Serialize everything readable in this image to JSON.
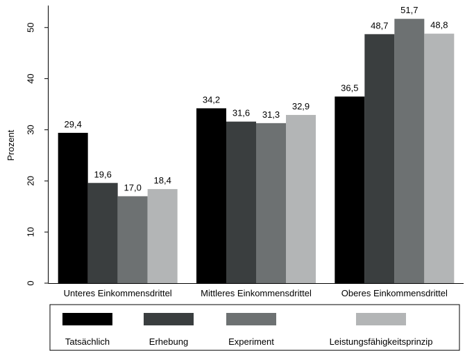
{
  "chart_data": {
    "type": "bar",
    "y_label": "Prozent",
    "categories": [
      "Unteres Einkommensdrittel",
      "Mittleres Einkommensdrittel",
      "Oberes Einkommensdrittel"
    ],
    "series": [
      {
        "name": "Tatsächlich",
        "color": "#000000",
        "values": [
          29.4,
          34.2,
          36.5
        ],
        "value_labels": [
          "29,4",
          "34,2",
          "36,5"
        ]
      },
      {
        "name": "Erhebung",
        "color": "#3a3e3f",
        "values": [
          19.6,
          31.6,
          48.7
        ],
        "value_labels": [
          "19,6",
          "31,6",
          "48,7"
        ]
      },
      {
        "name": "Experiment",
        "color": "#6d7172",
        "values": [
          17.0,
          31.3,
          51.7
        ],
        "value_labels": [
          "17,0",
          "31,3",
          "51,7"
        ]
      },
      {
        "name": "Leistungsfähigkeitsprinzip",
        "color": "#b3b5b6",
        "values": [
          18.4,
          32.9,
          48.8
        ],
        "value_labels": [
          "18,4",
          "32,9",
          "48,8"
        ]
      }
    ],
    "ylim": [
      0,
      54.3
    ],
    "yticks": [
      0,
      10,
      20,
      30,
      40,
      50
    ]
  }
}
